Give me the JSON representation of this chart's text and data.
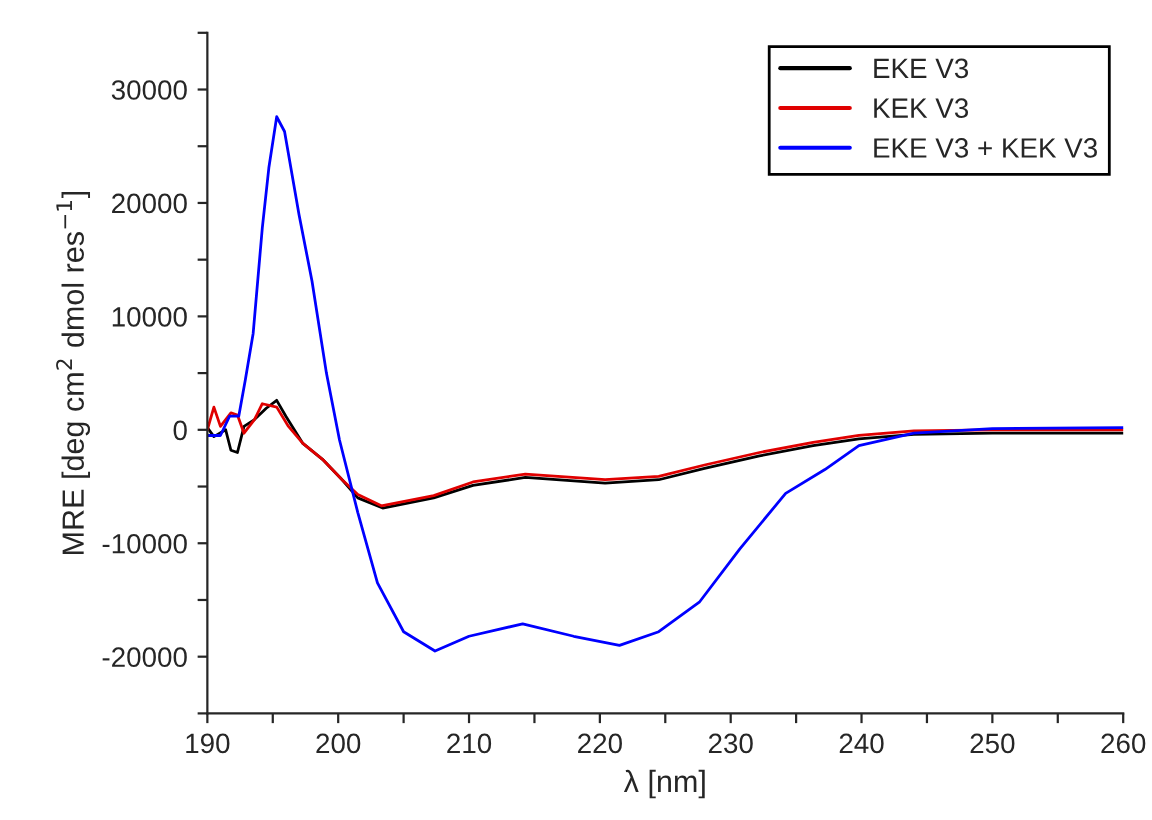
{
  "chart_data": {
    "type": "line",
    "xlabel": "λ [nm]",
    "ylabel": "MRE [deg cm$^{2}$ dmol res$^{−1}$]",
    "xlim": [
      190,
      260
    ],
    "ylim": [
      -25000,
      35000
    ],
    "xticks": [
      190,
      {
        "value": 195,
        "label": null
      },
      200,
      {
        "value": 205,
        "label": null
      },
      210,
      {
        "value": 215,
        "label": null
      },
      220,
      {
        "value": 225,
        "label": null
      },
      230,
      {
        "value": 235,
        "label": null
      },
      240,
      {
        "value": 245,
        "label": null
      },
      250,
      {
        "value": 255,
        "label": null
      },
      260
    ],
    "yticks": [
      {
        "value": -25000,
        "label": null
      },
      -20000,
      {
        "value": -15000,
        "label": null
      },
      -10000,
      {
        "value": -5000,
        "label": null
      },
      0,
      {
        "value": 5000,
        "label": null
      },
      10000,
      {
        "value": 15000,
        "label": null
      },
      20000,
      {
        "value": 25000,
        "label": null
      },
      30000,
      {
        "value": 35000,
        "label": null
      }
    ],
    "grid": false,
    "legend": "top right",
    "marker": "none",
    "line_style": "solid",
    "series": [
      {
        "name": "EKE V3",
        "color": "#000000",
        "x": [
          190,
          190.5,
          191.4,
          191.8,
          192.3,
          192.8,
          193.6,
          194.5,
          195.3,
          196,
          197.3,
          198.8,
          200.3,
          201.5,
          203.4,
          207.3,
          210.3,
          214.3,
          220.4,
          224.5,
          228,
          232.2,
          236.3,
          239.8,
          244,
          250,
          260
        ],
        "values": [
          200,
          -600,
          0,
          -1800,
          -2000,
          300,
          900,
          1900,
          2600,
          1200,
          -1200,
          -2600,
          -4400,
          -6000,
          -6900,
          -6000,
          -4900,
          -4200,
          -4700,
          -4400,
          -3400,
          -2300,
          -1400,
          -800,
          -400,
          -300,
          -300
        ]
      },
      {
        "name": "KEK V3",
        "color": "#e00000",
        "x": [
          190,
          190.5,
          191,
          191.8,
          192.3,
          192.8,
          193.6,
          194.2,
          195.3,
          196.2,
          197.3,
          198.8,
          200.3,
          201.5,
          203.3,
          207.3,
          210.3,
          214.3,
          220.4,
          224.5,
          228,
          232.2,
          236.3,
          239.8,
          244,
          250,
          260
        ],
        "values": [
          0,
          2000,
          300,
          1500,
          1300,
          -300,
          900,
          2300,
          2000,
          300,
          -1200,
          -2600,
          -4400,
          -5700,
          -6700,
          -5800,
          -4600,
          -3900,
          -4400,
          -4100,
          -3100,
          -2000,
          -1100,
          -500,
          -100,
          0,
          0
        ]
      },
      {
        "name": "EKE V3 + KEK V3",
        "color": "#0000ff",
        "x": [
          190,
          191,
          191.7,
          192.4,
          192.9,
          193.5,
          194.2,
          194.7,
          195.3,
          195.9,
          197,
          198,
          199.1,
          200.1,
          201.5,
          203,
          205,
          207.4,
          210,
          214.1,
          218,
          221.5,
          224.5,
          227.6,
          230.7,
          234.2,
          237.2,
          239.8,
          244,
          250,
          260
        ],
        "values": [
          -500,
          -500,
          1200,
          1200,
          4400,
          8500,
          17800,
          23100,
          27600,
          26300,
          19000,
          13100,
          5000,
          -900,
          -7300,
          -13500,
          -17800,
          -19500,
          -18200,
          -17100,
          -18200,
          -19000,
          -17800,
          -15200,
          -10500,
          -5600,
          -3500,
          -1400,
          -300,
          100,
          200
        ]
      }
    ]
  }
}
